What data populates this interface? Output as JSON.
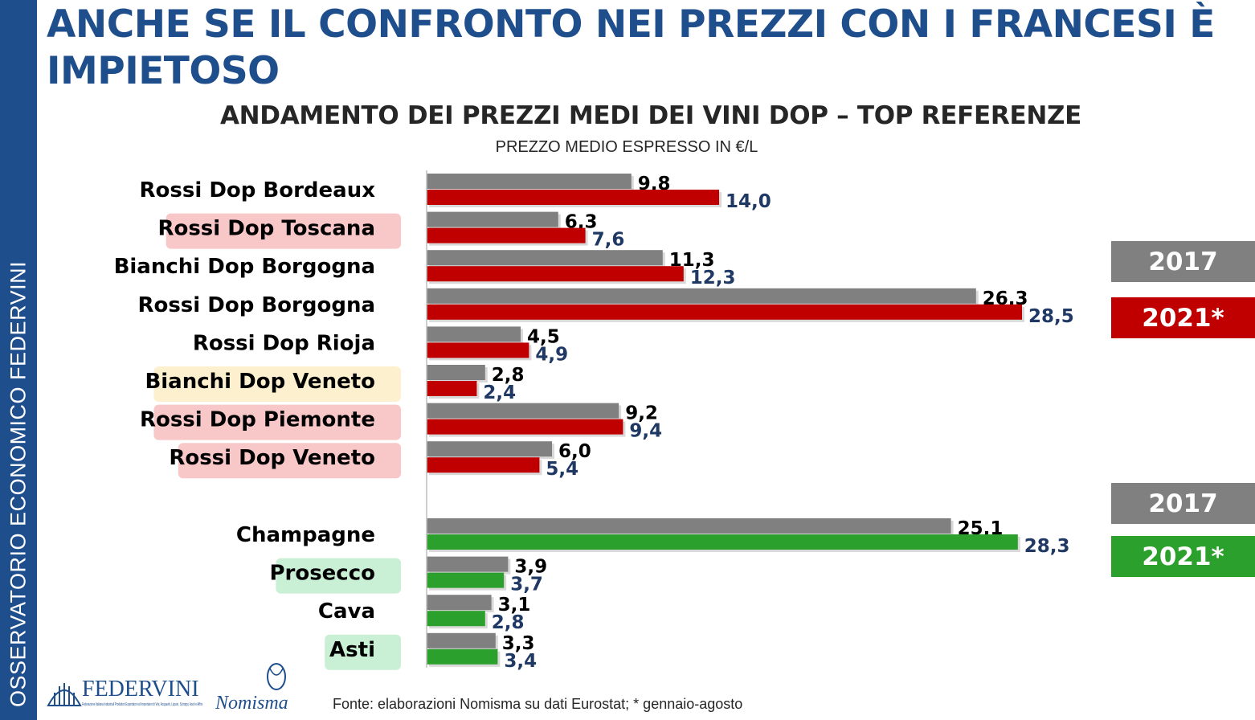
{
  "sidebar": {
    "text": "OSSERVATORIO ECONOMICO  FEDERVINI"
  },
  "header": {
    "title": "ANCHE SE IL CONFRONTO NEI PREZZI CON I FRANCESI È IMPIETOSO"
  },
  "legend": {
    "group1": [
      {
        "label": "2017",
        "color": "#808080"
      },
      {
        "label": "2021*",
        "color": "#c00000"
      }
    ],
    "group2": [
      {
        "label": "2017",
        "color": "#808080"
      },
      {
        "label": "2021*",
        "color": "#2ca02c"
      }
    ]
  },
  "footer": {
    "source": "Fonte: elaborazioni Nomisma su dati Eurostat; * gennaio-agosto",
    "logo_federvini": "FEDERVINI",
    "logo_federvini_sub": "Federazione Italiana Industriali Produttori Esportatori ed Importatori di Vini, Acquaviti, Liquori, Sciroppi, Aceti e Affini",
    "logo_nomisma": "Nomisma"
  },
  "chart_data": {
    "type": "bar",
    "orientation": "horizontal",
    "title": "ANDAMENTO DEI PREZZI MEDI DEI VINI DOP – TOP REFERENZE",
    "subtitle": "PREZZO MEDIO ESPRESSO IN €/L",
    "xlim": [
      0,
      30
    ],
    "series_names": [
      "2017",
      "2021*"
    ],
    "colors": {
      "s2017": "#808080",
      "s2021_still": "#c00000",
      "s2021_sparkling": "#2ca02c",
      "label2017": "#000000",
      "label2021": "#1f3864"
    },
    "groups": [
      {
        "name": "still",
        "categories": [
          {
            "label": "Rossi Dop Bordeaux",
            "v2017": 9.8,
            "v2021": 14.0,
            "l2017": "9,8",
            "l2021": "14,0",
            "highlight": ""
          },
          {
            "label": "Rossi Dop Toscana",
            "v2017": 6.3,
            "v2021": 7.6,
            "l2017": "6,3",
            "l2021": "7,6",
            "highlight": "#f8c8c8"
          },
          {
            "label": "Bianchi Dop Borgogna",
            "v2017": 11.3,
            "v2021": 12.3,
            "l2017": "11,3",
            "l2021": "12,3",
            "highlight": ""
          },
          {
            "label": "Rossi Dop Borgogna",
            "v2017": 26.3,
            "v2021": 28.5,
            "l2017": "26,3",
            "l2021": "28,5",
            "highlight": ""
          },
          {
            "label": "Rossi Dop Rioja",
            "v2017": 4.5,
            "v2021": 4.9,
            "l2017": "4,5",
            "l2021": "4,9",
            "highlight": ""
          },
          {
            "label": "Bianchi Dop Veneto",
            "v2017": 2.8,
            "v2021": 2.4,
            "l2017": "2,8",
            "l2021": "2,4",
            "highlight": "#fdf0cf"
          },
          {
            "label": "Rossi Dop Piemonte",
            "v2017": 9.2,
            "v2021": 9.4,
            "l2017": "9,2",
            "l2021": "9,4",
            "highlight": "#f8c8c8"
          },
          {
            "label": "Rossi Dop Veneto",
            "v2017": 6.0,
            "v2021": 5.4,
            "l2017": "6,0",
            "l2021": "5,4",
            "highlight": "#f8c8c8"
          }
        ]
      },
      {
        "name": "sparkling",
        "categories": [
          {
            "label": "Champagne",
            "v2017": 25.1,
            "v2021": 28.3,
            "l2017": "25,1",
            "l2021": "28,3",
            "highlight": ""
          },
          {
            "label": "Prosecco",
            "v2017": 3.9,
            "v2021": 3.7,
            "l2017": "3,9",
            "l2021": "3,7",
            "highlight": "#c9efd4"
          },
          {
            "label": "Cava",
            "v2017": 3.1,
            "v2021": 2.8,
            "l2017": "3,1",
            "l2021": "2,8",
            "highlight": ""
          },
          {
            "label": "Asti",
            "v2017": 3.3,
            "v2021": 3.4,
            "l2017": "3,3",
            "l2021": "3,4",
            "highlight": "#c9efd4"
          }
        ]
      }
    ]
  }
}
